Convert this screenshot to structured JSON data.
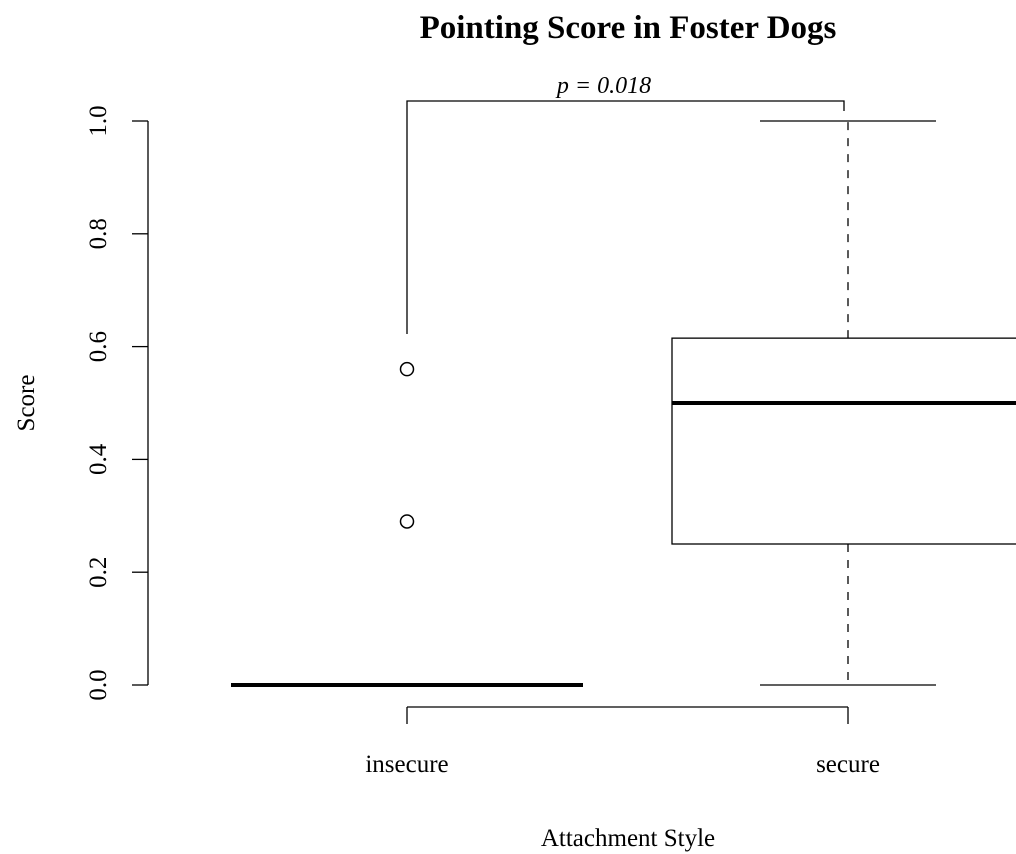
{
  "chart_data": {
    "type": "box",
    "title": "Pointing Score in Foster Dogs",
    "xlabel": "Attachment Style",
    "ylabel": "Score",
    "ylim": [
      0,
      1
    ],
    "yticks": [
      "0.0",
      "0.2",
      "0.4",
      "0.6",
      "0.8",
      "1.0"
    ],
    "grid": false,
    "categories": [
      "insecure",
      "secure"
    ],
    "boxes": [
      {
        "category": "insecure",
        "whisker_low": 0,
        "q1": 0,
        "median": 0,
        "q3": 0,
        "whisker_high": 0,
        "outliers": [
          0.29,
          0.56
        ]
      },
      {
        "category": "secure",
        "whisker_low": 0,
        "q1": 0.25,
        "median": 0.5,
        "q3": 0.615,
        "whisker_high": 1.0,
        "outliers": []
      }
    ],
    "annotations": {
      "significance_text": "p = 0.018"
    }
  }
}
